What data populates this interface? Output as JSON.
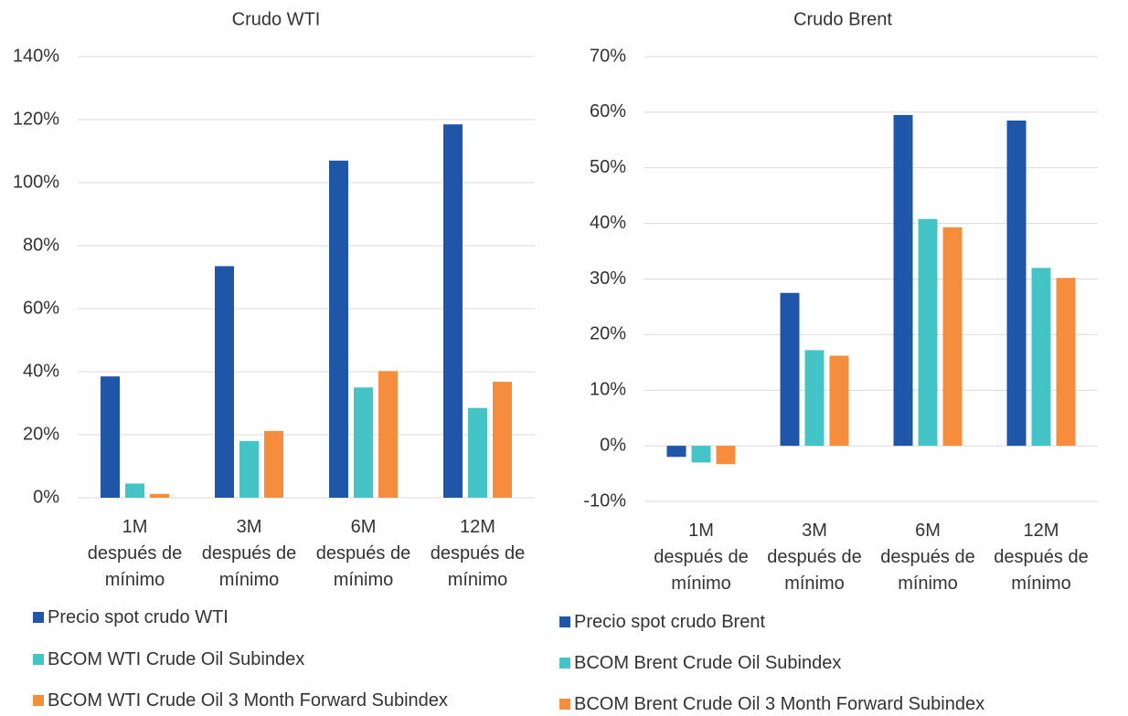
{
  "chart_data": [
    {
      "type": "bar",
      "title": "Crudo WTI",
      "categories": [
        "1M después de mínimo",
        "3M después de mínimo",
        "6M después de mínimo",
        "12M después de mínimo"
      ],
      "series": [
        {
          "name": "Precio spot crudo WTI",
          "color": "#1f56a8",
          "values": [
            38.5,
            73.5,
            107,
            118.5
          ]
        },
        {
          "name": "BCOM WTI Crude Oil Subindex",
          "color": "#45c4c8",
          "values": [
            4.5,
            18,
            35,
            28.5
          ]
        },
        {
          "name": "BCOM WTI Crude Oil 3 Month Forward Subindex",
          "color": "#f58d3c",
          "values": [
            1.2,
            21.2,
            40.2,
            36.8
          ]
        }
      ],
      "ylim": [
        0,
        140
      ],
      "yticks": [
        {
          "value": 0,
          "label": "0%"
        },
        {
          "value": 20,
          "label": "20%"
        },
        {
          "value": 40,
          "label": "40%"
        },
        {
          "value": 60,
          "label": "60%"
        },
        {
          "value": 80,
          "label": "80%"
        },
        {
          "value": 100,
          "label": "100%"
        },
        {
          "value": 120,
          "label": "120%"
        },
        {
          "value": 140,
          "label": "140%"
        }
      ],
      "grid": true
    },
    {
      "type": "bar",
      "title": "Crudo Brent",
      "categories": [
        "1M después de mínimo",
        "3M después de mínimo",
        "6M después de mínimo",
        "12M después de mínimo"
      ],
      "series": [
        {
          "name": "Precio spot crudo Brent",
          "color": "#1f56a8",
          "values": [
            -2,
            27.5,
            59.5,
            58.5
          ]
        },
        {
          "name": "BCOM Brent Crude Oil Subindex",
          "color": "#45c4c8",
          "values": [
            -3,
            17.2,
            40.8,
            32
          ]
        },
        {
          "name": "BCOM Brent Crude Oil 3 Month Forward Subindex",
          "color": "#f58d3c",
          "values": [
            -3.3,
            16.2,
            39.3,
            30.2
          ]
        }
      ],
      "ylim": [
        -10,
        70
      ],
      "yticks": [
        {
          "value": -10,
          "label": "-10%"
        },
        {
          "value": 0,
          "label": "0%"
        },
        {
          "value": 10,
          "label": "10%"
        },
        {
          "value": 20,
          "label": "20%"
        },
        {
          "value": 30,
          "label": "30%"
        },
        {
          "value": 40,
          "label": "40%"
        },
        {
          "value": 50,
          "label": "50%"
        },
        {
          "value": 60,
          "label": "60%"
        },
        {
          "value": 70,
          "label": "70%"
        }
      ],
      "grid": true
    }
  ]
}
